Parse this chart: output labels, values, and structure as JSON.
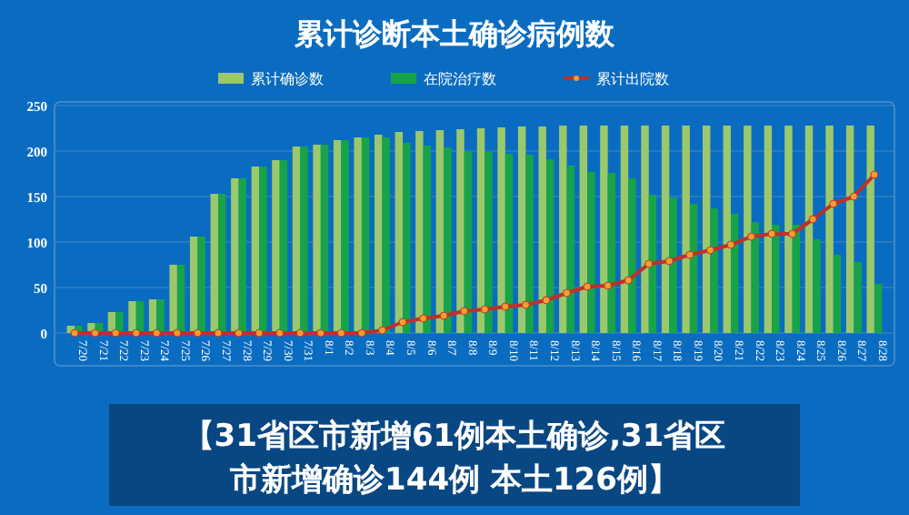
{
  "chart_data": {
    "type": "bar",
    "title": "累计诊断本土确诊病例数",
    "annotations": [
      "【31省区市新增61例本土确诊,31省区市新增确诊144例 本土126例】"
    ],
    "categories": [
      "7/20",
      "7/21",
      "7/22",
      "7/23",
      "7/24",
      "7/25",
      "7/26",
      "7/27",
      "7/28",
      "7/29",
      "7/30",
      "7/31",
      "8/1",
      "8/2",
      "8/3",
      "8/4",
      "8/5",
      "8/6",
      "8/7",
      "8/8",
      "8/9",
      "8/10",
      "8/11",
      "8/12",
      "8/13",
      "8/14",
      "8/15",
      "8/16",
      "8/17",
      "8/18",
      "8/19",
      "8/20",
      "8/21",
      "8/22",
      "8/23",
      "8/24",
      "8/25",
      "8/26",
      "8/27",
      "8/28"
    ],
    "series": [
      {
        "name": "累计确诊数",
        "color": "#9cc86c",
        "values": [
          8,
          11,
          23,
          35,
          37,
          75,
          106,
          153,
          170,
          183,
          190,
          205,
          207,
          212,
          215,
          218,
          221,
          222,
          223,
          224,
          225,
          226,
          227,
          227,
          228,
          228,
          228,
          228,
          228,
          228,
          228,
          228,
          228,
          228,
          228,
          228,
          228,
          228,
          228,
          228
        ]
      },
      {
        "name": "在院治疗数",
        "color": "#17a349",
        "values": [
          8,
          11,
          23,
          35,
          37,
          75,
          106,
          153,
          170,
          183,
          190,
          205,
          207,
          212,
          215,
          215,
          209,
          206,
          204,
          200,
          199,
          197,
          196,
          191,
          184,
          177,
          176,
          170,
          152,
          149,
          142,
          137,
          131,
          122,
          119,
          119,
          103,
          86,
          78,
          54
        ]
      },
      {
        "name": "累计出院数",
        "type": "line",
        "color": "#c0302a",
        "marker": "circle",
        "values": [
          0,
          0,
          0,
          0,
          0,
          0,
          0,
          0,
          0,
          0,
          0,
          0,
          0,
          0,
          0,
          3,
          12,
          16,
          19,
          24,
          26,
          29,
          31,
          36,
          44,
          51,
          52,
          58,
          76,
          79,
          86,
          91,
          97,
          106,
          109,
          109,
          125,
          142,
          150,
          174
        ]
      }
    ],
    "ylim": [
      0,
      250
    ],
    "yticks": [
      0,
      50,
      100,
      150,
      200,
      250
    ],
    "grid": "y",
    "legend": "top"
  }
}
